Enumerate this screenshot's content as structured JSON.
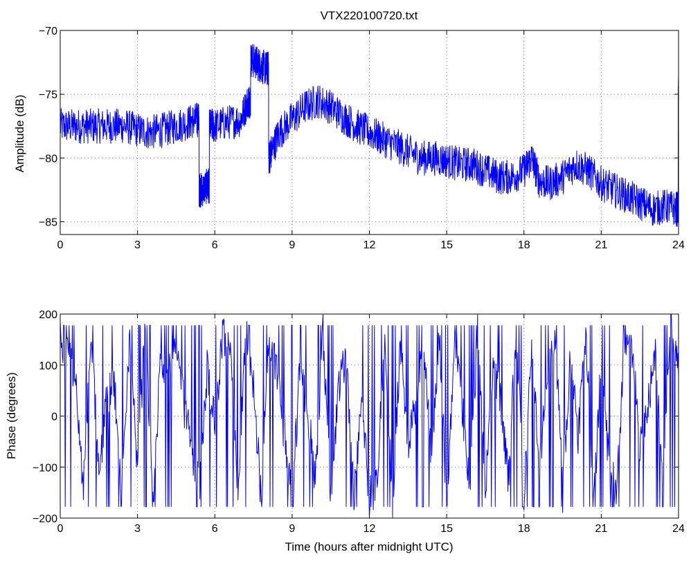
{
  "chart_data": [
    {
      "type": "line",
      "title": "VTX220100720.txt",
      "xlabel": "",
      "ylabel": "Amplitude (dB)",
      "xlim": [
        0,
        24
      ],
      "ylim": [
        -86,
        -70
      ],
      "xticks": [
        "0",
        "3",
        "6",
        "9",
        "12",
        "15",
        "18",
        "21",
        "24"
      ],
      "yticks": [
        "−70",
        "−75",
        "−80",
        "−85"
      ],
      "ytick_values": [
        -70,
        -75,
        -80,
        -85
      ],
      "grid": true,
      "series": [
        {
          "color": "#0000ff",
          "x": [
            0,
            0.5,
            1,
            1.5,
            2,
            2.5,
            3,
            3.5,
            4,
            4.5,
            5,
            5.3,
            5.4,
            5.5,
            5.7,
            5.8,
            6,
            6.5,
            7,
            7.3,
            7.4,
            7.6,
            7.8,
            8.0,
            8.1,
            8.2,
            8.5,
            9,
            9.5,
            10,
            10.5,
            11,
            11.5,
            12,
            12.5,
            13,
            13.5,
            14,
            14.5,
            15,
            15.5,
            16,
            16.5,
            17,
            17.5,
            18,
            18.3,
            18.6,
            19,
            19.5,
            20,
            20.5,
            21,
            21.5,
            22,
            22.5,
            23,
            23.5,
            23.9,
            24
          ],
          "y": [
            -77.5,
            -77.5,
            -77.5,
            -77.5,
            -77.5,
            -77.5,
            -77.8,
            -78,
            -77.8,
            -77.5,
            -77.2,
            -77,
            -82.5,
            -82.5,
            -82.2,
            -77.5,
            -77.5,
            -77.2,
            -77,
            -75.5,
            -72.3,
            -72.5,
            -72.8,
            -73,
            -80,
            -79.5,
            -78,
            -77,
            -76,
            -75.5,
            -76,
            -76.8,
            -77.5,
            -78,
            -78.5,
            -79,
            -79.5,
            -80,
            -80,
            -80.2,
            -80.5,
            -80.5,
            -81,
            -81.5,
            -81.5,
            -81,
            -80,
            -81.8,
            -82,
            -81.5,
            -80.5,
            -81,
            -82,
            -82.5,
            -83,
            -83.5,
            -84,
            -83.8,
            -84,
            -75
          ]
        }
      ]
    },
    {
      "type": "line",
      "title": "",
      "xlabel": "Time (hours after midnight UTC)",
      "ylabel": "Phase (degrees)",
      "xlim": [
        0,
        24
      ],
      "ylim": [
        -200,
        200
      ],
      "xticks": [
        "0",
        "3",
        "6",
        "9",
        "12",
        "15",
        "18",
        "21",
        "24"
      ],
      "yticks": [
        "200",
        "100",
        "0",
        "−100",
        "−200"
      ],
      "ytick_values": [
        200,
        100,
        0,
        -100,
        -200
      ],
      "grid": true,
      "series": [
        {
          "color": "#0000ff",
          "x": [
            0,
            0.3,
            0.6,
            0.9,
            1.2,
            1.5,
            1.8,
            2.1,
            2.4,
            2.7,
            3.0,
            3.3,
            3.6,
            3.9,
            4.2,
            4.5,
            4.8,
            5.1,
            5.4,
            5.7,
            6.0,
            6.3,
            6.6,
            6.9,
            7.2,
            7.5,
            7.8,
            8.1,
            8.4,
            8.7,
            9.0,
            9.3,
            9.6,
            9.9,
            10.2,
            10.5,
            10.8,
            11.1,
            11.4,
            11.7,
            12.0,
            12.3,
            12.6,
            12.9,
            13.2,
            13.5,
            13.8,
            14.1,
            14.4,
            14.7,
            15.0,
            15.3,
            15.6,
            15.9,
            16.2,
            16.5,
            16.8,
            17.1,
            17.4,
            17.7,
            18.0,
            18.3,
            18.6,
            18.9,
            19.2,
            19.5,
            19.8,
            20.1,
            20.4,
            20.7,
            21.0,
            21.3,
            21.6,
            21.9,
            22.2,
            22.5,
            22.8,
            23.1,
            23.4,
            23.7,
            24.0
          ],
          "y": [
            150,
            120,
            80,
            -150,
            170,
            -120,
            40,
            60,
            -160,
            150,
            -100,
            170,
            -170,
            120,
            80,
            140,
            20,
            -60,
            -140,
            90,
            -20,
            160,
            130,
            -150,
            170,
            60,
            -160,
            150,
            100,
            -40,
            -170,
            90,
            10,
            -120,
            170,
            -170,
            60,
            120,
            -150,
            40,
            -160,
            -130,
            170,
            -170,
            150,
            -50,
            20,
            160,
            -100,
            170,
            -170,
            140,
            20,
            -140,
            170,
            -150,
            100,
            30,
            -120,
            170,
            -160,
            150,
            -90,
            60,
            170,
            -150,
            120,
            -40,
            170,
            -170,
            100,
            -90,
            -150,
            160,
            130,
            -60,
            20,
            120,
            -130,
            170,
            80
          ]
        }
      ]
    }
  ]
}
